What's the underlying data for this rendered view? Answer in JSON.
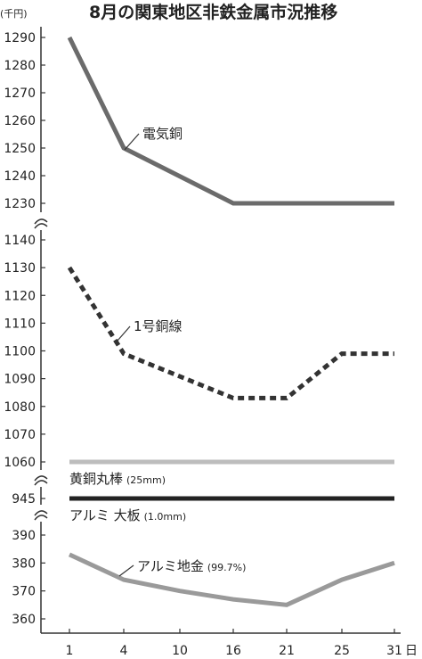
{
  "chart_data": {
    "type": "line",
    "title": "8月の関東地区非鉄金属市況推移",
    "unit": "(千円)",
    "x_categories": [
      "1",
      "4",
      "10",
      "16",
      "21",
      "25",
      "31"
    ],
    "x_unit": "日",
    "panels": [
      {
        "ticks": [
          1230,
          1240,
          1250,
          1260,
          1270,
          1280,
          1290
        ],
        "series": [
          {
            "name": "電気銅",
            "color": "#6b6b6b",
            "style": "solid",
            "x": [
              1,
              4,
              16,
              31
            ],
            "y": [
              1290,
              1250,
              1230,
              1230
            ]
          }
        ]
      },
      {
        "ticks": [
          1060,
          1070,
          1080,
          1090,
          1100,
          1110,
          1120,
          1130,
          1140
        ],
        "series": [
          {
            "name": "1号銅線",
            "color": "#333333",
            "style": "dotted",
            "x": [
              1,
              4,
              16,
              21,
              25,
              31
            ],
            "y": [
              1130,
              1099,
              1083,
              1083,
              1099,
              1099
            ]
          },
          {
            "name": "黄銅丸棒",
            "detail": "(25mm)",
            "color": "#bdbdbd",
            "style": "solid",
            "x": [
              1,
              31
            ],
            "y": [
              1060,
              1060
            ]
          }
        ]
      },
      {
        "ticks": [
          945
        ],
        "series": [
          {
            "name": "アルミ 大板",
            "detail": "(1.0mm)",
            "color": "#222222",
            "style": "solid",
            "x": [
              1,
              31
            ],
            "y": [
              945,
              945
            ]
          }
        ]
      },
      {
        "ticks": [
          360,
          370,
          380,
          390
        ],
        "series": [
          {
            "name": "アルミ地金",
            "detail": "(99.7%)",
            "color": "#9a9a9a",
            "style": "solid",
            "x": [
              1,
              4,
              10,
              16,
              21,
              25,
              31
            ],
            "y": [
              383,
              374,
              370,
              367,
              365,
              374,
              380
            ]
          }
        ]
      }
    ]
  }
}
